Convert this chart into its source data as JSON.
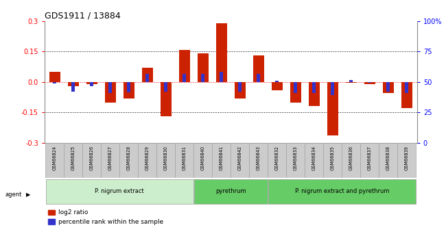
{
  "title": "GDS1911 / 13884",
  "samples": [
    "GSM66824",
    "GSM66825",
    "GSM66826",
    "GSM66827",
    "GSM66828",
    "GSM66829",
    "GSM66830",
    "GSM66831",
    "GSM66840",
    "GSM66841",
    "GSM66842",
    "GSM66843",
    "GSM66832",
    "GSM66833",
    "GSM66834",
    "GSM66835",
    "GSM66836",
    "GSM66837",
    "GSM66838",
    "GSM66839"
  ],
  "log2_ratio": [
    0.05,
    -0.02,
    -0.01,
    -0.1,
    -0.08,
    0.07,
    -0.17,
    0.16,
    0.14,
    0.29,
    -0.08,
    0.13,
    -0.04,
    -0.1,
    -0.12,
    -0.265,
    -0.003,
    -0.01,
    -0.055,
    -0.13
  ],
  "pct_rank_offset": [
    -0.006,
    -0.048,
    -0.021,
    -0.054,
    -0.051,
    0.039,
    -0.048,
    0.039,
    0.039,
    0.051,
    -0.048,
    0.039,
    0.006,
    -0.054,
    -0.054,
    -0.063,
    0.009,
    -0.003,
    -0.048,
    -0.054
  ],
  "groups": [
    {
      "label": "P. nigrum extract",
      "start": 0,
      "end": 8,
      "color": "#cceecc"
    },
    {
      "label": "pyrethrum",
      "start": 8,
      "end": 12,
      "color": "#66cc66"
    },
    {
      "label": "P. nigrum extract and pyrethrum",
      "start": 12,
      "end": 20,
      "color": "#66cc66"
    }
  ],
  "ylim": [
    -0.3,
    0.3
  ],
  "yticks_left": [
    -0.3,
    -0.15,
    0.0,
    0.15,
    0.3
  ],
  "yticks_right": [
    0,
    25,
    50,
    75,
    100
  ],
  "red_color": "#cc2200",
  "blue_color": "#3333cc",
  "bg_plot": "#ffffff"
}
